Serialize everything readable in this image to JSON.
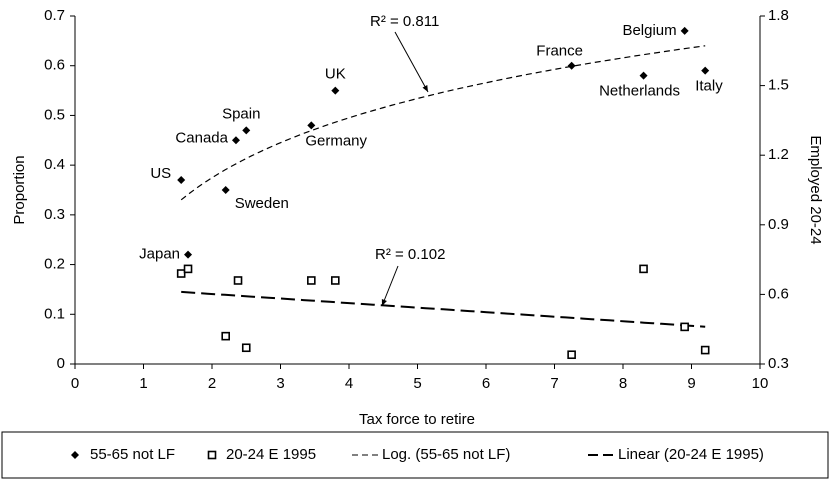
{
  "chart_data": {
    "type": "scatter",
    "xlabel": "Tax force to retire",
    "ylabel": "Proportion",
    "y2label": "Employed 20-24",
    "xlim": [
      0,
      10
    ],
    "xticks": [
      0,
      1,
      2,
      3,
      4,
      5,
      6,
      7,
      8,
      9,
      10
    ],
    "ylim": [
      0,
      0.7
    ],
    "yticks": [
      0,
      0.1,
      0.2,
      0.3,
      0.4,
      0.5,
      0.6,
      0.7
    ],
    "y2lim": [
      0.3,
      1.8
    ],
    "y2ticks": [
      0.3,
      0.6,
      0.9,
      1.2,
      1.5,
      1.8
    ],
    "series": [
      {
        "name": "55-65 not LF",
        "marker": "diamond",
        "color": "#000000",
        "x": [
          1.55,
          1.65,
          2.2,
          2.35,
          2.5,
          3.45,
          3.8,
          7.25,
          8.3,
          8.9,
          9.2
        ],
        "values": [
          0.37,
          0.22,
          0.35,
          0.45,
          0.47,
          0.48,
          0.55,
          0.6,
          0.58,
          0.67,
          0.59
        ],
        "labels": [
          "US",
          "Japan",
          "Sweden",
          "Canada",
          "Spain",
          "Germany",
          "UK",
          "France",
          "Netherlands",
          "Belgium",
          "Italy"
        ]
      },
      {
        "name": "20-24 E 1995",
        "marker": "square",
        "color": "#000000",
        "axis": "y2",
        "x": [
          1.55,
          1.65,
          2.2,
          2.38,
          2.5,
          3.45,
          3.8,
          7.25,
          8.3,
          8.9,
          9.2
        ],
        "values": [
          0.69,
          0.71,
          0.42,
          0.66,
          0.37,
          0.66,
          0.66,
          0.34,
          0.71,
          0.46,
          0.36
        ]
      }
    ],
    "trendlines": [
      {
        "name": "Log. (55-65 not LF)",
        "kind": "log",
        "coef": [
          0.174,
          0.254
        ],
        "range": [
          1.55,
          9.2
        ],
        "annotation": "R² = 0.811"
      },
      {
        "name": "Linear (20-24 E 1995)",
        "kind": "linear",
        "axis": "y2",
        "coef": [
          -0.0196,
          0.641
        ],
        "range": [
          1.55,
          9.2
        ],
        "annotation": "R² = 0.102"
      }
    ]
  }
}
